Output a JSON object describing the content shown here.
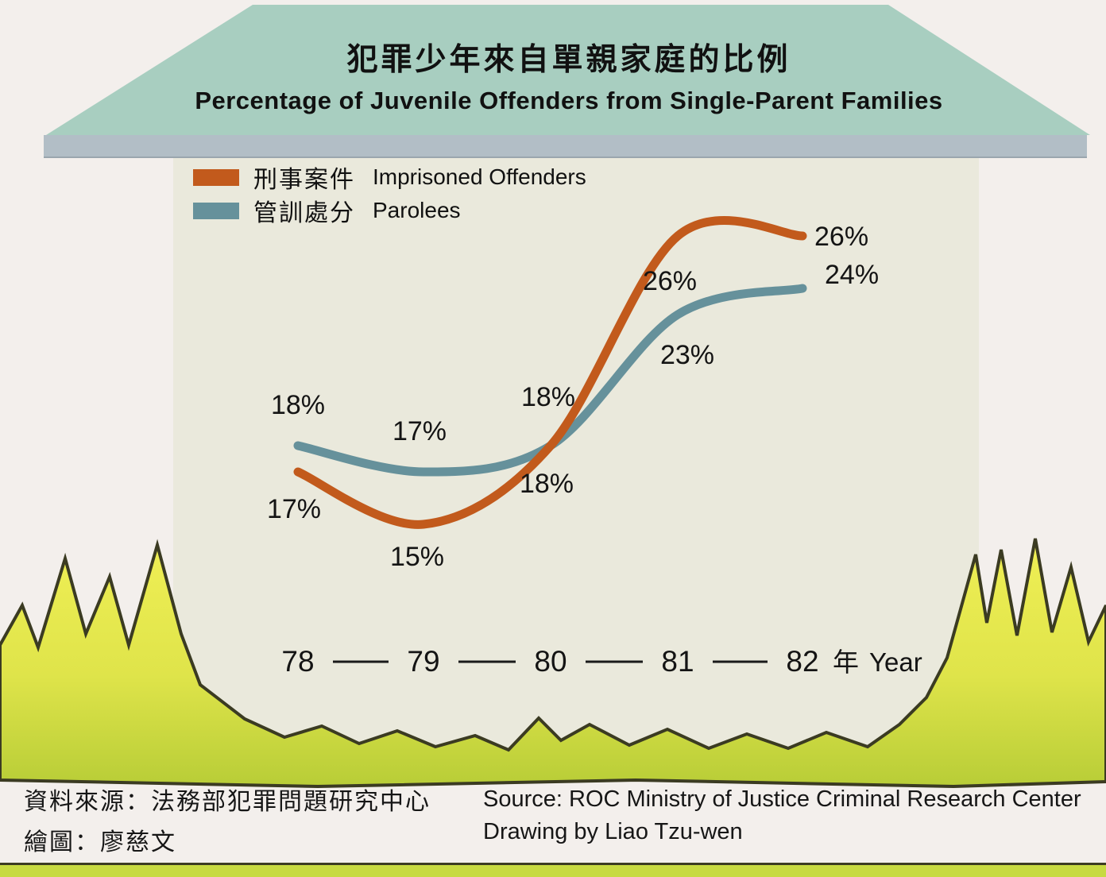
{
  "title": {
    "zh": "犯罪少年來自單親家庭的比例",
    "en": "Percentage of Juvenile Offenders from Single-Parent Families"
  },
  "legend": [
    {
      "zh": "刑事案件",
      "en": "Imprisoned Offenders",
      "color": "#c25a1c"
    },
    {
      "zh": "管訓處分",
      "en": "Parolees",
      "color": "#66919b"
    }
  ],
  "chart_data": {
    "type": "line",
    "x": [
      "78",
      "79",
      "80",
      "81",
      "82"
    ],
    "x_suffix": {
      "zh": "年",
      "en": "Year"
    },
    "unit": "%",
    "series": [
      {
        "name": "Imprisoned Offenders",
        "name_zh": "刑事案件",
        "color": "#c25a1c",
        "values": [
          17,
          15,
          18,
          26,
          26
        ]
      },
      {
        "name": "Parolees",
        "name_zh": "管訓處分",
        "color": "#66919b",
        "values": [
          18,
          17,
          18,
          23,
          24
        ]
      }
    ],
    "ylim": [
      13,
      28
    ],
    "grid": false,
    "legend_position": "top-left"
  },
  "source": {
    "zh_line1": "資料來源：法務部犯罪問題研究中心",
    "zh_line2": "繪圖：廖慈文",
    "en_line1": "Source: ROC Ministry of Justice Criminal Research Center",
    "en_line2": "Drawing by Liao Tzu-wen"
  },
  "colors": {
    "background": "#f3efec",
    "roof": "#a8cec0",
    "eave": "#b2bec6",
    "wall": "#eae9dc",
    "grass_yellow": "#f0ef55",
    "grass_green": "#b8cd37",
    "grass_outline": "#3b3b22",
    "text": "#141414"
  }
}
